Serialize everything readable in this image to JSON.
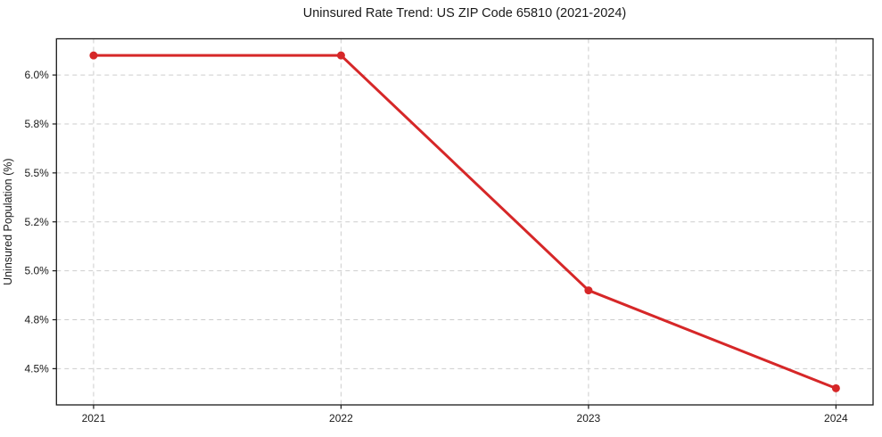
{
  "chart_data": {
    "type": "line",
    "title": "Uninsured Rate Trend: US ZIP Code 65810 (2021-2024)",
    "ylabel": "Uninsured Population (%)",
    "x": [
      2021,
      2022,
      2023,
      2024
    ],
    "series": [
      {
        "name": "Uninsured rate",
        "values": [
          6.1,
          6.1,
          4.9,
          4.4
        ]
      }
    ],
    "xlim": [
      2020.85,
      2024.15
    ],
    "ylim": [
      4.315,
      6.185
    ],
    "xticks": {
      "values": [
        2021,
        2022,
        2023,
        2024
      ],
      "labels": [
        "2021",
        "2022",
        "2023",
        "2024"
      ]
    },
    "yticks": {
      "values": [
        4.5,
        4.75,
        5.0,
        5.25,
        5.5,
        5.75,
        6.0
      ],
      "labels": [
        "4.5%",
        "4.8%",
        "5.0%",
        "5.2%",
        "5.5%",
        "5.8%",
        "6.0%"
      ]
    },
    "grid": true,
    "legend": "none",
    "colors": {
      "line": "#d62728",
      "marker": "#d62728",
      "grid": "#cdcdcd",
      "spine": "#1a1a1a",
      "tick": "#1a1a1a",
      "background": "#ffffff"
    }
  }
}
